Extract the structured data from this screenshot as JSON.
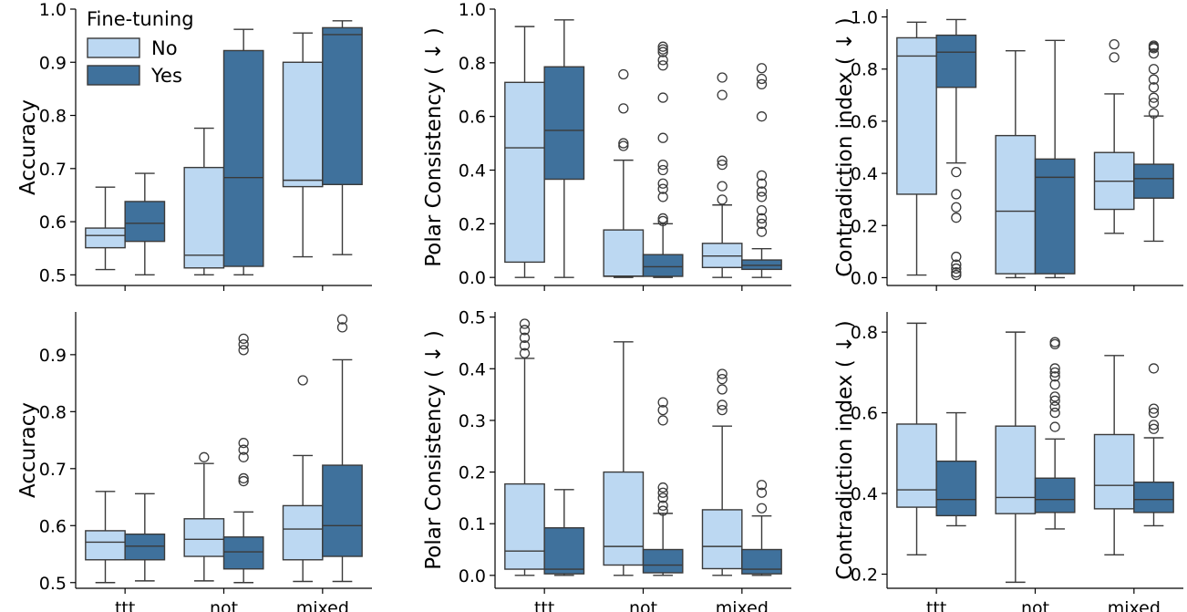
{
  "figure": {
    "legend": {
      "title": "Fine-tuning",
      "entries": [
        "No",
        "Yes"
      ],
      "colors": [
        "#bcd8f2",
        "#3f719c"
      ]
    },
    "edge_color": "#3a3a3a"
  },
  "chart_data": [
    {
      "type": "box",
      "row": 0,
      "col": 0,
      "ylabel": "Accuracy",
      "ylim": [
        0.48,
        1.0
      ],
      "yticks": [
        0.5,
        0.6,
        0.7,
        0.8,
        0.9,
        1.0
      ],
      "categories": [
        "ttt",
        "not",
        "mixed"
      ],
      "show_xticklabels": false,
      "series": [
        {
          "name": "No",
          "boxes": [
            {
              "whislo": 0.51,
              "q1": 0.551,
              "med": 0.574,
              "q3": 0.588,
              "whishi": 0.665,
              "fliers": []
            },
            {
              "whislo": 0.5,
              "q1": 0.513,
              "med": 0.537,
              "q3": 0.702,
              "whishi": 0.776,
              "fliers": []
            },
            {
              "whislo": 0.534,
              "q1": 0.666,
              "med": 0.678,
              "q3": 0.9,
              "whishi": 0.955,
              "fliers": []
            }
          ]
        },
        {
          "name": "Yes",
          "boxes": [
            {
              "whislo": 0.5,
              "q1": 0.563,
              "med": 0.597,
              "q3": 0.638,
              "whishi": 0.691,
              "fliers": []
            },
            {
              "whislo": 0.5,
              "q1": 0.516,
              "med": 0.683,
              "q3": 0.922,
              "whishi": 0.962,
              "fliers": []
            },
            {
              "whislo": 0.538,
              "q1": 0.67,
              "med": 0.952,
              "q3": 0.965,
              "whishi": 0.978,
              "fliers": []
            }
          ]
        }
      ]
    },
    {
      "type": "box",
      "row": 0,
      "col": 1,
      "ylabel": "Polar Consistency ( ↓ )",
      "ylim": [
        -0.03,
        1.0
      ],
      "yticks": [
        0.0,
        0.2,
        0.4,
        0.6,
        0.8,
        1.0
      ],
      "categories": [
        "ttt",
        "not",
        "mixed"
      ],
      "show_xticklabels": false,
      "series": [
        {
          "name": "No",
          "boxes": [
            {
              "whislo": 0.0,
              "q1": 0.057,
              "med": 0.483,
              "q3": 0.727,
              "whishi": 0.935,
              "fliers": []
            },
            {
              "whislo": 0.0,
              "q1": 0.004,
              "med": 0.005,
              "q3": 0.177,
              "whishi": 0.437,
              "fliers": [
                0.49,
                0.5,
                0.63,
                0.757
              ]
            },
            {
              "whislo": 0.0,
              "q1": 0.037,
              "med": 0.08,
              "q3": 0.127,
              "whishi": 0.27,
              "fliers": [
                0.29,
                0.34,
                0.42,
                0.435,
                0.68,
                0.745
              ]
            }
          ]
        },
        {
          "name": "Yes",
          "boxes": [
            {
              "whislo": 0.0,
              "q1": 0.366,
              "med": 0.548,
              "q3": 0.785,
              "whishi": 0.96,
              "fliers": []
            },
            {
              "whislo": 0.0,
              "q1": 0.004,
              "med": 0.04,
              "q3": 0.085,
              "whishi": 0.2,
              "fliers": [
                0.21,
                0.22,
                0.3,
                0.33,
                0.35,
                0.4,
                0.42,
                0.52,
                0.67,
                0.79,
                0.81,
                0.84,
                0.85,
                0.86
              ]
            },
            {
              "whislo": 0.0,
              "q1": 0.03,
              "med": 0.045,
              "q3": 0.065,
              "whishi": 0.107,
              "fliers": [
                0.17,
                0.2,
                0.22,
                0.25,
                0.3,
                0.32,
                0.35,
                0.38,
                0.6,
                0.72,
                0.74,
                0.78
              ]
            }
          ]
        }
      ]
    },
    {
      "type": "box",
      "row": 0,
      "col": 2,
      "ylabel": "Contradiction index ( ↓ )",
      "ylim": [
        -0.03,
        1.03
      ],
      "yticks": [
        0.0,
        0.2,
        0.4,
        0.6,
        0.8,
        1.0
      ],
      "categories": [
        "ttt",
        "not",
        "mixed"
      ],
      "show_xticklabels": false,
      "series": [
        {
          "name": "No",
          "boxes": [
            {
              "whislo": 0.01,
              "q1": 0.32,
              "med": 0.85,
              "q3": 0.92,
              "whishi": 0.98,
              "fliers": []
            },
            {
              "whislo": 0.0,
              "q1": 0.015,
              "med": 0.255,
              "q3": 0.545,
              "whishi": 0.87,
              "fliers": []
            },
            {
              "whislo": 0.17,
              "q1": 0.262,
              "med": 0.37,
              "q3": 0.48,
              "whishi": 0.705,
              "fliers": [
                0.845,
                0.895
              ]
            }
          ]
        },
        {
          "name": "Yes",
          "boxes": [
            {
              "whislo": 0.44,
              "q1": 0.73,
              "med": 0.865,
              "q3": 0.93,
              "whishi": 0.99,
              "fliers": [
                0.01,
                0.02,
                0.035,
                0.05,
                0.08,
                0.23,
                0.27,
                0.32,
                0.405
              ]
            },
            {
              "whislo": 0.0,
              "q1": 0.015,
              "med": 0.385,
              "q3": 0.455,
              "whishi": 0.91,
              "fliers": []
            },
            {
              "whislo": 0.14,
              "q1": 0.305,
              "med": 0.38,
              "q3": 0.435,
              "whishi": 0.62,
              "fliers": [
                0.63,
                0.67,
                0.69,
                0.73,
                0.76,
                0.8,
                0.86,
                0.88,
                0.885,
                0.89
              ]
            }
          ]
        }
      ]
    },
    {
      "type": "box",
      "row": 1,
      "col": 0,
      "ylabel": "Accuracy",
      "ylim": [
        0.49,
        0.975
      ],
      "yticks": [
        0.5,
        0.6,
        0.7,
        0.8,
        0.9
      ],
      "categories": [
        "ttt",
        "not",
        "mixed"
      ],
      "show_xticklabels": true,
      "series": [
        {
          "name": "No",
          "boxes": [
            {
              "whislo": 0.5,
              "q1": 0.54,
              "med": 0.571,
              "q3": 0.591,
              "whishi": 0.66,
              "fliers": []
            },
            {
              "whislo": 0.503,
              "q1": 0.546,
              "med": 0.576,
              "q3": 0.612,
              "whishi": 0.709,
              "fliers": [
                0.72
              ]
            },
            {
              "whislo": 0.502,
              "q1": 0.54,
              "med": 0.594,
              "q3": 0.635,
              "whishi": 0.723,
              "fliers": [
                0.855
              ]
            }
          ]
        },
        {
          "name": "Yes",
          "boxes": [
            {
              "whislo": 0.503,
              "q1": 0.54,
              "med": 0.564,
              "q3": 0.585,
              "whishi": 0.656,
              "fliers": []
            },
            {
              "whislo": 0.5,
              "q1": 0.524,
              "med": 0.554,
              "q3": 0.58,
              "whishi": 0.624,
              "fliers": [
                0.678,
                0.683,
                0.72,
                0.733,
                0.745,
                0.908,
                0.918,
                0.928
              ]
            },
            {
              "whislo": 0.502,
              "q1": 0.546,
              "med": 0.6,
              "q3": 0.706,
              "whishi": 0.891,
              "fliers": [
                0.948,
                0.962
              ]
            }
          ]
        }
      ]
    },
    {
      "type": "box",
      "row": 1,
      "col": 1,
      "ylabel": "Polar Consistency ( ↓ )",
      "ylim": [
        -0.025,
        0.51
      ],
      "yticks": [
        0.0,
        0.1,
        0.2,
        0.3,
        0.4,
        0.5
      ],
      "categories": [
        "ttt",
        "not",
        "mixed"
      ],
      "show_xticklabels": true,
      "series": [
        {
          "name": "No",
          "boxes": [
            {
              "whislo": 0.0,
              "q1": 0.012,
              "med": 0.047,
              "q3": 0.177,
              "whishi": 0.42,
              "fliers": [
                0.43,
                0.445,
                0.46,
                0.475,
                0.487
              ]
            },
            {
              "whislo": 0.0,
              "q1": 0.02,
              "med": 0.056,
              "q3": 0.2,
              "whishi": 0.452,
              "fliers": []
            },
            {
              "whislo": 0.0,
              "q1": 0.013,
              "med": 0.056,
              "q3": 0.127,
              "whishi": 0.289,
              "fliers": [
                0.32,
                0.33,
                0.36,
                0.38,
                0.39
              ]
            }
          ]
        },
        {
          "name": "Yes",
          "boxes": [
            {
              "whislo": 0.0,
              "q1": 0.003,
              "med": 0.012,
              "q3": 0.092,
              "whishi": 0.166,
              "fliers": []
            },
            {
              "whislo": 0.0,
              "q1": 0.005,
              "med": 0.02,
              "q3": 0.05,
              "whishi": 0.12,
              "fliers": [
                0.125,
                0.135,
                0.15,
                0.16,
                0.17,
                0.3,
                0.32,
                0.335
              ]
            },
            {
              "whislo": 0.0,
              "q1": 0.003,
              "med": 0.012,
              "q3": 0.05,
              "whishi": 0.115,
              "fliers": [
                0.13,
                0.16,
                0.175
              ]
            }
          ]
        }
      ]
    },
    {
      "type": "box",
      "row": 1,
      "col": 2,
      "ylabel": "Contradiction index ( ↓ )",
      "ylim": [
        0.165,
        0.85
      ],
      "yticks": [
        0.2,
        0.4,
        0.6,
        0.8
      ],
      "categories": [
        "ttt",
        "not",
        "mixed"
      ],
      "show_xticklabels": true,
      "series": [
        {
          "name": "No",
          "boxes": [
            {
              "whislo": 0.248,
              "q1": 0.366,
              "med": 0.409,
              "q3": 0.572,
              "whishi": 0.822,
              "fliers": []
            },
            {
              "whislo": 0.18,
              "q1": 0.35,
              "med": 0.39,
              "q3": 0.567,
              "whishi": 0.8,
              "fliers": []
            },
            {
              "whislo": 0.248,
              "q1": 0.362,
              "med": 0.42,
              "q3": 0.546,
              "whishi": 0.742,
              "fliers": []
            }
          ]
        },
        {
          "name": "Yes",
          "boxes": [
            {
              "whislo": 0.32,
              "q1": 0.345,
              "med": 0.385,
              "q3": 0.48,
              "whishi": 0.6,
              "fliers": []
            },
            {
              "whislo": 0.312,
              "q1": 0.353,
              "med": 0.385,
              "q3": 0.438,
              "whishi": 0.535,
              "fliers": [
                0.565,
                0.6,
                0.615,
                0.63,
                0.64,
                0.67,
                0.69,
                0.7,
                0.71,
                0.77,
                0.775
              ]
            },
            {
              "whislo": 0.32,
              "q1": 0.353,
              "med": 0.385,
              "q3": 0.428,
              "whishi": 0.538,
              "fliers": [
                0.56,
                0.57,
                0.6,
                0.61,
                0.71
              ]
            }
          ]
        }
      ]
    }
  ]
}
